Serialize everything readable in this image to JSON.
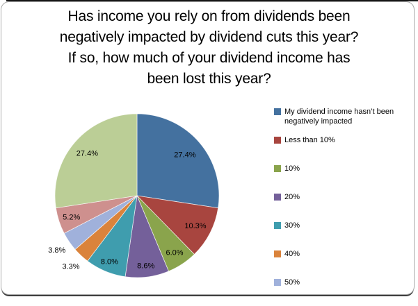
{
  "title_lines": [
    "Has income you rely on from dividends been",
    "negatively impacted by dividend cuts this year?",
    "If so, how much of your dividend income has",
    "been lost this year?"
  ],
  "chart_data": {
    "type": "pie",
    "title": "Has income you rely on from dividends been negatively impacted by dividend cuts this year? If so, how much of your dividend income has been lost this year?",
    "start_angle_deg": 0,
    "direction": "clockwise",
    "legend_position": "right",
    "total": 100.0,
    "slices": [
      {
        "legend": "My dividend income hasn’t been negatively impacted",
        "value": 27.4,
        "label": "27.4%",
        "color": "#44719F"
      },
      {
        "legend": "Less than 10%",
        "value": 10.3,
        "label": "10.3%",
        "color": "#A8453F"
      },
      {
        "legend": "10%",
        "value": 6.0,
        "label": "6.0%",
        "color": "#8AA44C"
      },
      {
        "legend": "20%",
        "value": 8.6,
        "label": "8.6%",
        "color": "#74609A"
      },
      {
        "legend": "30%",
        "value": 8.0,
        "label": "8.0%",
        "color": "#3F9DAE"
      },
      {
        "legend": "40%",
        "value": 3.3,
        "label": "3.3%",
        "color": "#DA833B"
      },
      {
        "legend": "50%",
        "value": 3.8,
        "label": "3.8%",
        "color": "#A0B1DB"
      },
      {
        "value": 5.2,
        "label": "5.2%",
        "color": "#CE908E"
      },
      {
        "value": 27.4,
        "label": "27.4%",
        "color": "#BBCE96"
      }
    ]
  }
}
